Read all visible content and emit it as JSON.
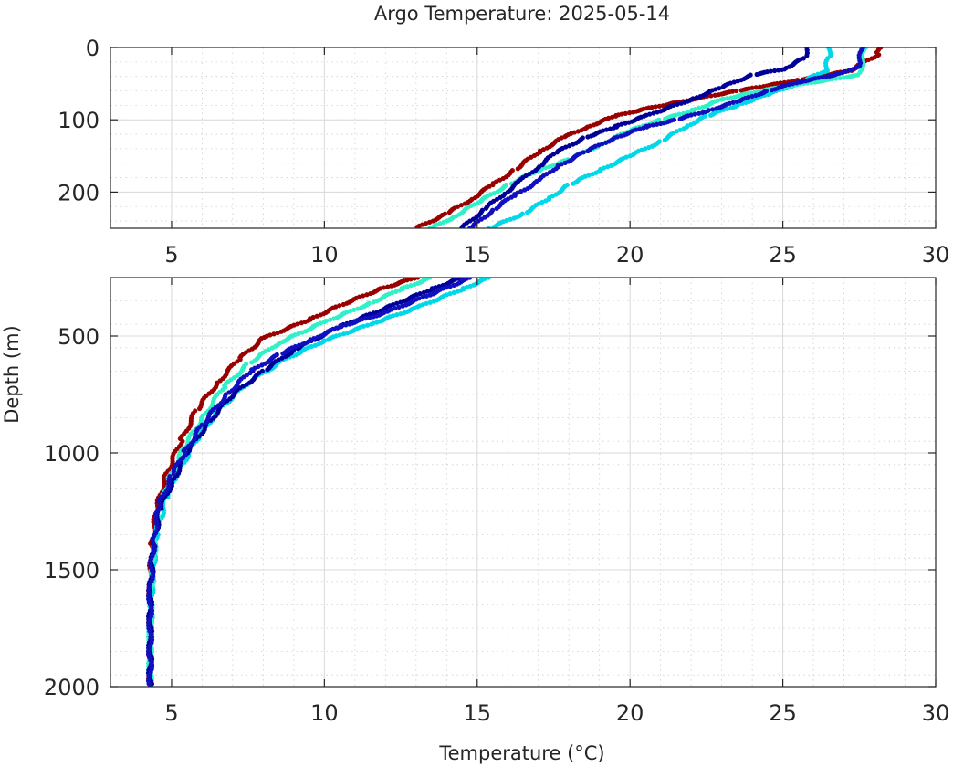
{
  "chart_data": {
    "type": "scatter",
    "title": "Argo Temperature: 2025-05-14",
    "xlabel": "Temperature (°C)",
    "ylabel": "Depth (m)",
    "grid": true,
    "minor_grid": true,
    "panels": [
      {
        "name": "upper",
        "xlim": [
          3,
          30
        ],
        "ylim": [
          0,
          250
        ],
        "y_reversed": true,
        "xticks": [
          5,
          10,
          15,
          20,
          25,
          30
        ],
        "yticks": [
          0,
          100,
          200
        ],
        "xtick_labels": [
          "5",
          "10",
          "15",
          "20",
          "25",
          "30"
        ],
        "ytick_labels": [
          "0",
          "100",
          "200"
        ]
      },
      {
        "name": "lower",
        "xlim": [
          3,
          30
        ],
        "ylim": [
          250,
          2000
        ],
        "y_reversed": true,
        "xticks": [
          5,
          10,
          15,
          20,
          25,
          30
        ],
        "yticks": [
          500,
          1000,
          1500,
          2000
        ],
        "xtick_labels": [
          "5",
          "10",
          "15",
          "20",
          "25",
          "30"
        ],
        "ytick_labels": [
          "500",
          "1000",
          "1500",
          "2000"
        ]
      }
    ],
    "series": [
      {
        "color": "#990000",
        "points": [
          [
            28.2,
            0
          ],
          [
            28.1,
            10
          ],
          [
            27.6,
            22
          ],
          [
            27.2,
            32
          ],
          [
            25.5,
            45
          ],
          [
            23.5,
            60
          ],
          [
            22.0,
            72
          ],
          [
            20.5,
            85
          ],
          [
            19.5,
            95
          ],
          [
            18.6,
            110
          ],
          [
            17.8,
            125
          ],
          [
            17.0,
            145
          ],
          [
            16.2,
            170
          ],
          [
            15.5,
            190
          ],
          [
            14.8,
            210
          ],
          [
            14.0,
            230
          ],
          [
            13.0,
            250
          ],
          [
            11.8,
            300
          ],
          [
            10.5,
            370
          ],
          [
            9.5,
            430
          ],
          [
            8.0,
            510
          ],
          [
            7.2,
            600
          ],
          [
            6.5,
            700
          ],
          [
            5.8,
            820
          ],
          [
            5.3,
            950
          ],
          [
            4.8,
            1100
          ],
          [
            4.5,
            1250
          ],
          [
            4.35,
            1400
          ],
          [
            4.3,
            1600
          ],
          [
            4.3,
            1800
          ],
          [
            4.3,
            2000
          ]
        ]
      },
      {
        "color": "#00d8e8",
        "points": [
          [
            26.5,
            0
          ],
          [
            26.5,
            15
          ],
          [
            26.4,
            32
          ],
          [
            25.5,
            50
          ],
          [
            24.5,
            65
          ],
          [
            23.5,
            80
          ],
          [
            22.5,
            95
          ],
          [
            21.8,
            110
          ],
          [
            21.0,
            130
          ],
          [
            20.0,
            150
          ],
          [
            19.0,
            170
          ],
          [
            18.0,
            190
          ],
          [
            17.3,
            210
          ],
          [
            16.5,
            230
          ],
          [
            15.4,
            250
          ],
          [
            14.5,
            300
          ],
          [
            13.0,
            380
          ],
          [
            11.5,
            450
          ],
          [
            10.0,
            520
          ],
          [
            8.7,
            600
          ],
          [
            7.5,
            700
          ],
          [
            6.5,
            820
          ],
          [
            5.8,
            950
          ],
          [
            5.2,
            1080
          ],
          [
            4.8,
            1200
          ],
          [
            4.5,
            1350
          ],
          [
            4.35,
            1550
          ],
          [
            4.3,
            1800
          ],
          [
            4.3,
            2000
          ]
        ]
      },
      {
        "color": "#30f0c8",
        "points": [
          [
            27.7,
            0
          ],
          [
            27.6,
            20
          ],
          [
            27.5,
            38
          ],
          [
            26.0,
            48
          ],
          [
            24.5,
            58
          ],
          [
            23.0,
            72
          ],
          [
            22.0,
            88
          ],
          [
            21.0,
            100
          ],
          [
            20.0,
            115
          ],
          [
            19.0,
            135
          ],
          [
            18.0,
            155
          ],
          [
            17.0,
            170
          ],
          [
            16.0,
            190
          ],
          [
            15.0,
            215
          ],
          [
            14.2,
            235
          ],
          [
            13.5,
            250
          ],
          [
            12.5,
            300
          ],
          [
            11.5,
            360
          ],
          [
            10.0,
            440
          ],
          [
            8.5,
            530
          ],
          [
            7.5,
            620
          ],
          [
            6.7,
            720
          ],
          [
            6.0,
            850
          ],
          [
            5.4,
            980
          ],
          [
            4.9,
            1120
          ],
          [
            4.6,
            1250
          ],
          [
            4.4,
            1450
          ],
          [
            4.3,
            1700
          ],
          [
            4.3,
            2000
          ]
        ]
      },
      {
        "color": "#000099",
        "points": [
          [
            25.8,
            0
          ],
          [
            25.7,
            15
          ],
          [
            25.0,
            30
          ],
          [
            24.0,
            38
          ],
          [
            23.0,
            55
          ],
          [
            22.0,
            72
          ],
          [
            20.5,
            95
          ],
          [
            19.5,
            110
          ],
          [
            18.5,
            125
          ],
          [
            17.6,
            145
          ],
          [
            17.0,
            165
          ],
          [
            16.4,
            185
          ],
          [
            15.8,
            205
          ],
          [
            15.2,
            225
          ],
          [
            14.5,
            250
          ],
          [
            13.5,
            300
          ],
          [
            12.2,
            370
          ],
          [
            10.5,
            460
          ],
          [
            9.0,
            560
          ],
          [
            8.0,
            650
          ],
          [
            7.0,
            750
          ],
          [
            6.2,
            870
          ],
          [
            5.5,
            1000
          ],
          [
            5.0,
            1130
          ],
          [
            4.6,
            1250
          ],
          [
            4.4,
            1400
          ],
          [
            4.3,
            1600
          ],
          [
            4.3,
            1800
          ],
          [
            4.3,
            2000
          ]
        ]
      },
      {
        "color": "#1010c0",
        "points": [
          [
            27.6,
            0
          ],
          [
            27.5,
            25
          ],
          [
            27.0,
            35
          ],
          [
            25.5,
            48
          ],
          [
            24.5,
            60
          ],
          [
            23.5,
            75
          ],
          [
            22.5,
            88
          ],
          [
            21.5,
            100
          ],
          [
            20.5,
            110
          ],
          [
            19.5,
            125
          ],
          [
            18.5,
            145
          ],
          [
            17.6,
            165
          ],
          [
            17.0,
            185
          ],
          [
            16.2,
            205
          ],
          [
            15.5,
            225
          ],
          [
            14.8,
            250
          ],
          [
            13.5,
            320
          ],
          [
            12.0,
            400
          ],
          [
            10.5,
            460
          ],
          [
            9.5,
            520
          ],
          [
            8.5,
            580
          ],
          [
            7.6,
            650
          ],
          [
            6.8,
            750
          ],
          [
            6.0,
            880
          ],
          [
            5.4,
            1000
          ],
          [
            5.0,
            1100
          ],
          [
            4.6,
            1220
          ],
          [
            4.4,
            1380
          ],
          [
            4.3,
            1600
          ],
          [
            4.3,
            2000
          ]
        ]
      }
    ]
  }
}
